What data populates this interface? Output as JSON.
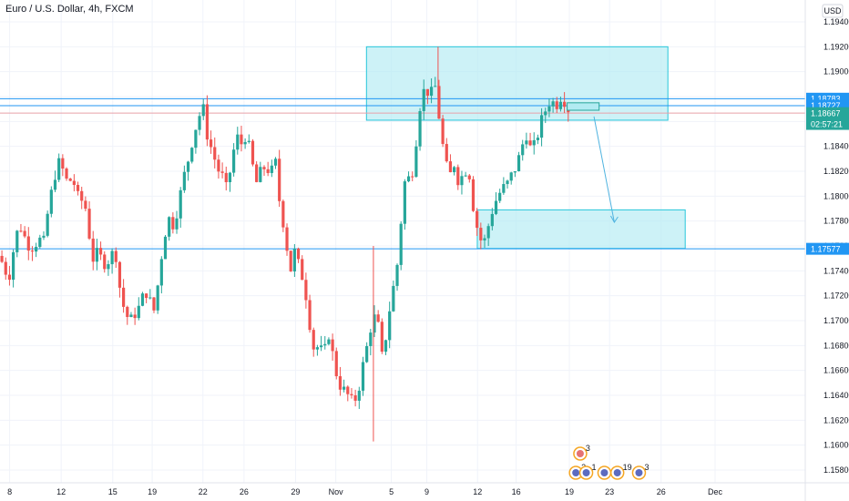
{
  "header": {
    "title": "Euro / U.S. Dollar, 4h, FXCM"
  },
  "colors": {
    "up": "#26a69a",
    "down": "#ef5350",
    "zone_fill": "#b2ebf2",
    "zone_stroke": "#26c6da",
    "line_blue": "#2196f3",
    "line_pink": "#e8a0a8",
    "tag_blue": "#2196f3",
    "tag_green": "#26a69a",
    "arrow": "#4fb3e0"
  },
  "chart_data": {
    "type": "candlestick",
    "symbol": "Euro / U.S. Dollar",
    "timeframe": "4h",
    "source": "FXCM",
    "currency_label": "USD",
    "y_range": [
      1.157,
      1.195
    ],
    "y_ticks": [
      "1.19400",
      "1.19200",
      "1.19000",
      "1.18800",
      "1.18600",
      "1.18400",
      "1.18200",
      "1.18000",
      "1.17800",
      "1.17600",
      "1.17400",
      "1.17200",
      "1.17000",
      "1.16800",
      "1.16600",
      "1.16400",
      "1.16200",
      "1.16000",
      "1.15800"
    ],
    "x_tick_labels": [
      "8",
      "12",
      "15",
      "19",
      "22",
      "26",
      "29",
      "Nov",
      "5",
      "9",
      "12",
      "16",
      "19",
      "23",
      "26",
      "Dec"
    ],
    "price_tags": [
      {
        "label": "1.18783",
        "value": 1.18783,
        "color": "blue"
      },
      {
        "label": "1.18727",
        "value": 1.18727,
        "color": "blue"
      },
      {
        "label": "1.18667",
        "value": 1.18667,
        "color": "green"
      },
      {
        "label": "02:57:21",
        "value": 1.1858,
        "color": "green"
      },
      {
        "label": "1.17577",
        "value": 1.17577,
        "color": "blue"
      }
    ],
    "horizontal_lines": [
      {
        "value": 1.18783,
        "color": "blue"
      },
      {
        "value": 1.18727,
        "color": "blue"
      },
      {
        "value": 1.18667,
        "color": "pink"
      },
      {
        "value": 1.17577,
        "color": "blue"
      }
    ],
    "zones": [
      {
        "name": "supply zone",
        "from_x": 0.4551,
        "to_x": 0.8294,
        "top": 1.192,
        "bottom": 1.1861
      },
      {
        "name": "demand zone",
        "from_x": 0.5927,
        "to_x": 0.8509,
        "top": 1.1789,
        "bottom": 1.1758
      }
    ],
    "small_box": {
      "from_x": 0.7043,
      "to_x": 0.744,
      "top": 1.1875,
      "bottom": 1.1869
    },
    "projection_arrow": {
      "from_x": 0.7376,
      "from_value": 1.1864,
      "to_x": 0.7629,
      "to_value": 1.1779
    },
    "event_icons": [
      {
        "x": 0.7205,
        "row": 1,
        "count": "3"
      },
      {
        "x": 0.7151,
        "row": 2,
        "count": "2"
      },
      {
        "x": 0.728,
        "row": 2,
        "count": "1"
      },
      {
        "x": 0.7505,
        "row": 2,
        "count": ""
      },
      {
        "x": 0.7666,
        "row": 2,
        "count": "19"
      },
      {
        "x": 0.7935,
        "row": 2,
        "count": "3"
      }
    ],
    "candles_close_path": [
      [
        0.0,
        1.1752
      ],
      [
        0.006,
        1.174
      ],
      [
        0.012,
        1.1737
      ],
      [
        0.018,
        1.1762
      ],
      [
        0.024,
        1.1778
      ],
      [
        0.03,
        1.1768
      ],
      [
        0.036,
        1.176
      ],
      [
        0.042,
        1.1759
      ],
      [
        0.048,
        1.1766
      ],
      [
        0.054,
        1.1762
      ],
      [
        0.06,
        1.179
      ],
      [
        0.066,
        1.181
      ],
      [
        0.072,
        1.1828
      ],
      [
        0.078,
        1.1821
      ],
      [
        0.084,
        1.181
      ],
      [
        0.09,
        1.1815
      ],
      [
        0.096,
        1.18
      ],
      [
        0.102,
        1.1796
      ],
      [
        0.108,
        1.1788
      ],
      [
        0.114,
        1.1748
      ],
      [
        0.12,
        1.1754
      ],
      [
        0.126,
        1.175
      ],
      [
        0.132,
        1.1744
      ],
      [
        0.138,
        1.1754
      ],
      [
        0.144,
        1.1752
      ],
      [
        0.15,
        1.172
      ],
      [
        0.156,
        1.1705
      ],
      [
        0.162,
        1.17
      ],
      [
        0.168,
        1.1706
      ],
      [
        0.174,
        1.1712
      ],
      [
        0.18,
        1.1725
      ],
      [
        0.186,
        1.1716
      ],
      [
        0.192,
        1.1707
      ],
      [
        0.198,
        1.174
      ],
      [
        0.204,
        1.1768
      ],
      [
        0.21,
        1.1782
      ],
      [
        0.216,
        1.1776
      ],
      [
        0.222,
        1.1795
      ],
      [
        0.228,
        1.1815
      ],
      [
        0.234,
        1.183
      ],
      [
        0.24,
        1.1848
      ],
      [
        0.246,
        1.1862
      ],
      [
        0.252,
        1.1872
      ],
      [
        0.258,
        1.1846
      ],
      [
        0.264,
        1.1836
      ],
      [
        0.27,
        1.1822
      ],
      [
        0.276,
        1.1816
      ],
      [
        0.282,
        1.1804
      ],
      [
        0.288,
        1.183
      ],
      [
        0.294,
        1.1848
      ],
      [
        0.3,
        1.1842
      ],
      [
        0.306,
        1.185
      ],
      [
        0.312,
        1.183
      ],
      [
        0.318,
        1.181
      ],
      [
        0.324,
        1.182
      ],
      [
        0.33,
        1.1824
      ],
      [
        0.336,
        1.1818
      ],
      [
        0.342,
        1.1828
      ],
      [
        0.348,
        1.179
      ],
      [
        0.354,
        1.1772
      ],
      [
        0.36,
        1.1738
      ],
      [
        0.366,
        1.1756
      ],
      [
        0.372,
        1.1742
      ],
      [
        0.378,
        1.173
      ],
      [
        0.384,
        1.17
      ],
      [
        0.39,
        1.1676
      ],
      [
        0.396,
        1.168
      ],
      [
        0.402,
        1.1672
      ],
      [
        0.408,
        1.169
      ],
      [
        0.414,
        1.167
      ],
      [
        0.42,
        1.165
      ],
      [
        0.426,
        1.1645
      ],
      [
        0.432,
        1.164
      ],
      [
        0.438,
        1.1634
      ],
      [
        0.444,
        1.164
      ],
      [
        0.45,
        1.1662
      ],
      [
        0.456,
        1.168
      ],
      [
        0.462,
        1.17
      ],
      [
        0.468,
        1.1705
      ],
      [
        0.474,
        1.167
      ],
      [
        0.48,
        1.169
      ],
      [
        0.486,
        1.172
      ],
      [
        0.492,
        1.1736
      ],
      [
        0.498,
        1.178
      ],
      [
        0.504,
        1.182
      ],
      [
        0.51,
        1.181
      ],
      [
        0.516,
        1.184
      ],
      [
        0.522,
        1.1875
      ],
      [
        0.528,
        1.1888
      ],
      [
        0.534,
        1.188
      ],
      [
        0.54,
        1.189
      ],
      [
        0.546,
        1.186
      ],
      [
        0.552,
        1.183
      ],
      [
        0.558,
        1.1815
      ],
      [
        0.564,
        1.1826
      ],
      [
        0.57,
        1.181
      ],
      [
        0.576,
        1.182
      ],
      [
        0.582,
        1.1822
      ],
      [
        0.588,
        1.179
      ],
      [
        0.594,
        1.177
      ],
      [
        0.6,
        1.176
      ],
      [
        0.606,
        1.1775
      ],
      [
        0.612,
        1.179
      ],
      [
        0.618,
        1.18
      ],
      [
        0.624,
        1.1806
      ],
      [
        0.63,
        1.181
      ],
      [
        0.636,
        1.1818
      ],
      [
        0.642,
        1.1825
      ],
      [
        0.648,
        1.184
      ],
      [
        0.654,
        1.185
      ],
      [
        0.66,
        1.1835
      ],
      [
        0.666,
        1.1845
      ],
      [
        0.672,
        1.186
      ],
      [
        0.678,
        1.187
      ],
      [
        0.684,
        1.1878
      ],
      [
        0.69,
        1.1872
      ],
      [
        0.696,
        1.188
      ],
      [
        0.702,
        1.1876
      ],
      [
        0.708,
        1.1866
      ]
    ]
  }
}
